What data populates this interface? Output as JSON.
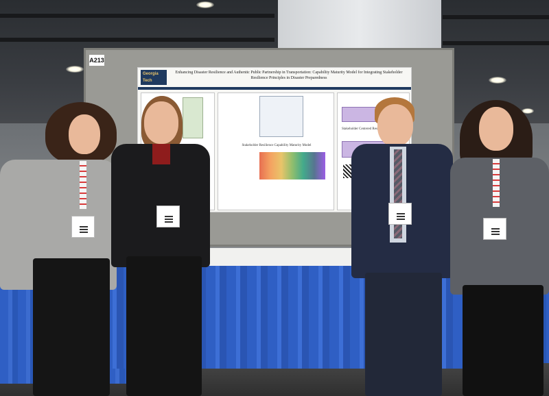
{
  "scene": {
    "booth_number": "A213",
    "poster": {
      "logo": "Georgia Tech",
      "title": "Enhancing Disaster Resilience and Authentic Public Partnership in Transportation: Capability Maturity Model for Integrating Stakeholder Resilience Principles in Disaster Preparedness",
      "center_heading": "Stakeholder Resilience Capability Maturity Model",
      "side_heading": "Stakeholder Centered Resilience"
    }
  },
  "colors": {
    "table_skirt": "#2f5fc4",
    "poster_header": "#1f3a5f",
    "poster_accent": "#cbb6e3"
  }
}
